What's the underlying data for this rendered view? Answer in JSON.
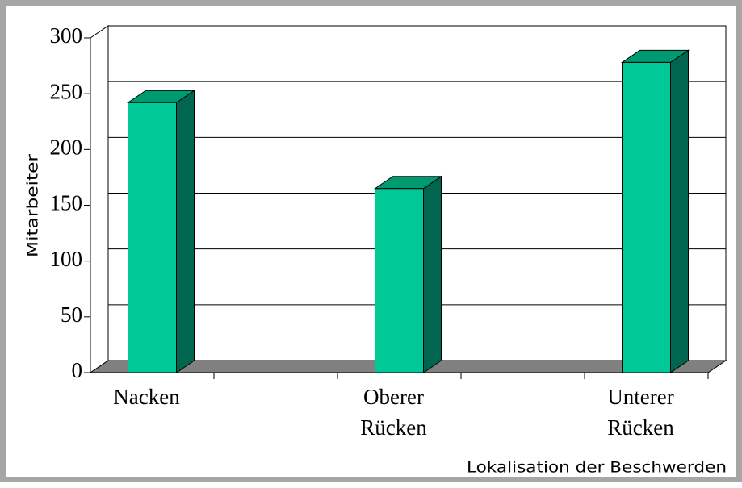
{
  "chart_data": {
    "type": "bar3d",
    "y_axis_label": "Mitarbeiter",
    "x_axis_label": "Lokalisation der Beschwerden",
    "categories": [
      "Nacken",
      "Oberer Rücken",
      "Unterer Rücken"
    ],
    "values": [
      242,
      165,
      278
    ],
    "color": "#00c896",
    "ylim": [
      0,
      300
    ],
    "yticks": [
      0,
      50,
      100,
      150,
      200,
      250,
      300
    ],
    "grid": true
  }
}
